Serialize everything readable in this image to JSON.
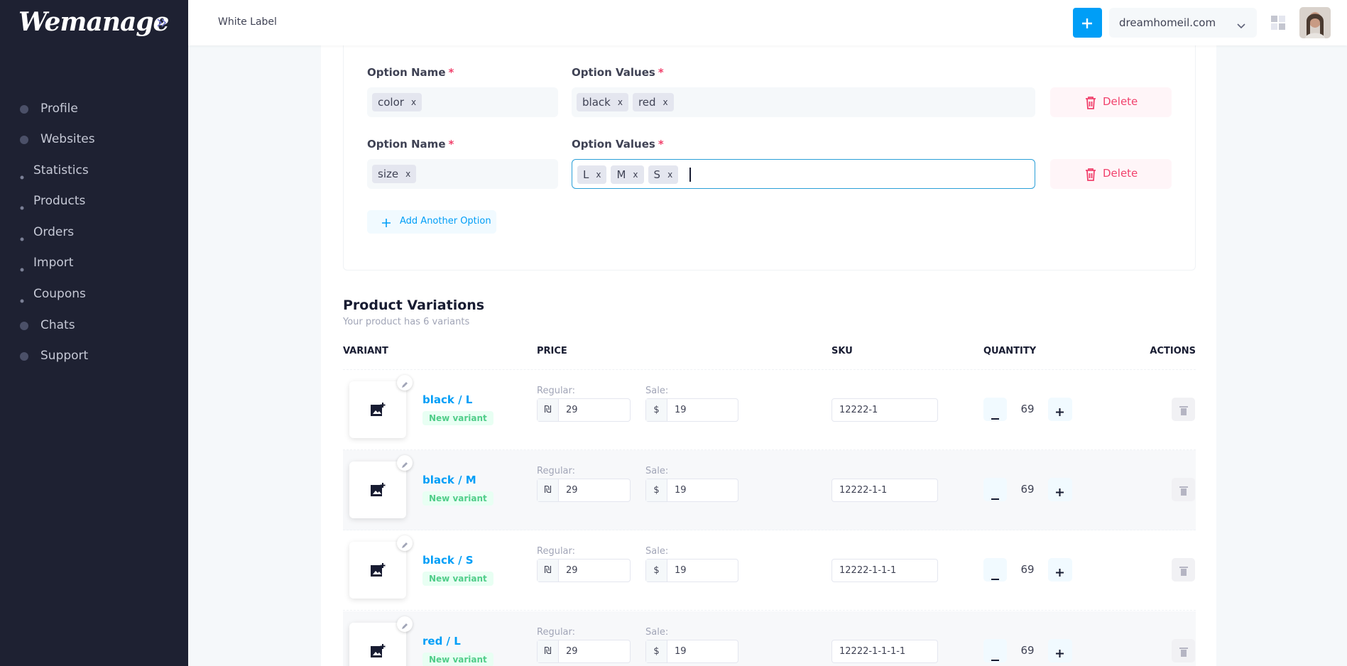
{
  "sidebar": {
    "logo": "Wemanage",
    "nav": [
      "Profile",
      "Websites",
      "Statistics",
      "Products",
      "Orders",
      "Import",
      "Coupons",
      "Chats",
      "Support"
    ]
  },
  "header": {
    "title": "White Label",
    "domain": "dreamhomeil.com"
  },
  "options": {
    "required_mark": "*",
    "remove_mark": "x",
    "rows": [
      {
        "name_label": "Option Name",
        "values_label": "Option Values",
        "name_tags": [
          "color"
        ],
        "value_tags": [
          "black",
          "red"
        ],
        "delete": "Delete"
      },
      {
        "name_label": "Option Name",
        "values_label": "Option Values",
        "name_tags": [
          "size"
        ],
        "value_tags": [
          "L",
          "M",
          "S"
        ],
        "delete": "Delete"
      }
    ],
    "add_button": "Add Another Option"
  },
  "variations": {
    "title": "Product Variations",
    "subtitle": "Your product has 6 variants",
    "columns": [
      "VARIANT",
      "PRICE",
      "SKU",
      "QUANTITY",
      "ACTIONS"
    ],
    "rows": [
      {
        "name": "black / L",
        "badge": "New variant",
        "regular_label": "Regular:",
        "regular_currency": "₪",
        "regular": 29,
        "sale_label": "Sale:",
        "sale_currency": "$",
        "sale": 19,
        "sku": "12222-1",
        "quantity": 69
      },
      {
        "name": "black / M",
        "badge": "New variant",
        "regular_label": "Regular:",
        "regular_currency": "₪",
        "regular": 29,
        "sale_label": "Sale:",
        "sale_currency": "$",
        "sale": 19,
        "sku": "12222-1-1",
        "quantity": 69
      },
      {
        "name": "black / S",
        "badge": "New variant",
        "regular_label": "Regular:",
        "regular_currency": "₪",
        "regular": 29,
        "sale_label": "Sale:",
        "sale_currency": "$",
        "sale": 19,
        "sku": "12222-1-1-1",
        "quantity": 69
      },
      {
        "name": "red / L",
        "badge": "New variant",
        "regular_label": "Regular:",
        "regular_currency": "₪",
        "regular": 29,
        "sale_label": "Sale:",
        "sale_currency": "$",
        "sale": 19,
        "sku": "12222-1-1-1-1",
        "quantity": 69
      }
    ]
  }
}
